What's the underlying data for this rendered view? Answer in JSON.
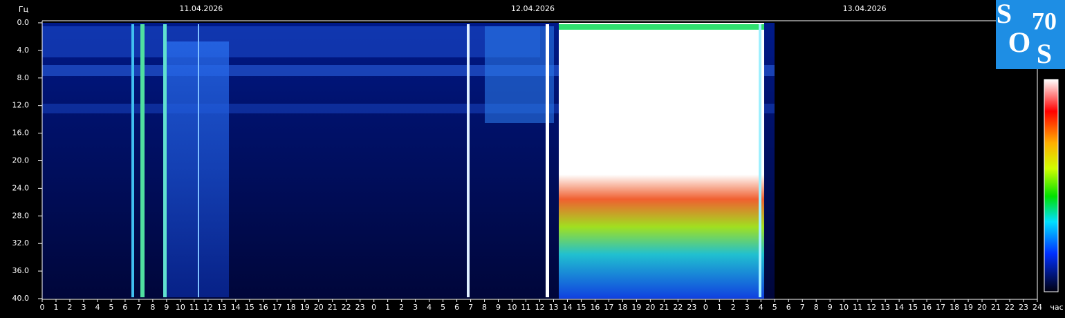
{
  "chart_data": {
    "type": "spectrogram",
    "y_label": "Гц",
    "x_label": "час",
    "dates": [
      "11.04.2026",
      "12.04.2026",
      "13.04.2026"
    ],
    "ylim": [
      0,
      40
    ],
    "yticks": [
      {
        "value": 0,
        "label": "0.0"
      },
      {
        "value": 4,
        "label": "4.0"
      },
      {
        "value": 8,
        "label": "8.0"
      },
      {
        "value": 12,
        "label": "12.0"
      },
      {
        "value": 16,
        "label": "16.0"
      },
      {
        "value": 20,
        "label": "20.0"
      },
      {
        "value": 24,
        "label": "24.0"
      },
      {
        "value": 28,
        "label": "28.0"
      },
      {
        "value": 32,
        "label": "32.0"
      },
      {
        "value": 36,
        "label": "36.0"
      },
      {
        "value": 40,
        "label": "40.0"
      }
    ],
    "xlim": [
      0,
      72
    ],
    "xticks": [
      0,
      1,
      2,
      3,
      4,
      5,
      6,
      7,
      8,
      9,
      10,
      11,
      12,
      13,
      14,
      15,
      16,
      17,
      18,
      19,
      20,
      21,
      22,
      23,
      {
        "value": 24,
        "label": "0"
      },
      {
        "value": 25,
        "label": "1"
      },
      {
        "value": 26,
        "label": "2"
      },
      {
        "value": 27,
        "label": "3"
      },
      {
        "value": 28,
        "label": "4"
      },
      {
        "value": 29,
        "label": "5"
      },
      {
        "value": 30,
        "label": "6"
      },
      {
        "value": 31,
        "label": "7"
      },
      {
        "value": 32,
        "label": "8"
      },
      {
        "value": 33,
        "label": "9"
      },
      {
        "value": 34,
        "label": "10"
      },
      {
        "value": 35,
        "label": "11"
      },
      {
        "value": 36,
        "label": "12"
      },
      {
        "value": 37,
        "label": "13"
      },
      {
        "value": 38,
        "label": "14"
      },
      {
        "value": 39,
        "label": "15"
      },
      {
        "value": 40,
        "label": "16"
      },
      {
        "value": 41,
        "label": "17"
      },
      {
        "value": 42,
        "label": "18"
      },
      {
        "value": 43,
        "label": "19"
      },
      {
        "value": 44,
        "label": "20"
      },
      {
        "value": 45,
        "label": "21"
      },
      {
        "value": 46,
        "label": "22"
      },
      {
        "value": 47,
        "label": "23"
      },
      {
        "value": 48,
        "label": "0"
      },
      {
        "value": 49,
        "label": "1"
      },
      {
        "value": 50,
        "label": "2"
      },
      {
        "value": 51,
        "label": "3"
      },
      {
        "value": 52,
        "label": "4"
      },
      {
        "value": 53,
        "label": "5"
      },
      {
        "value": 54,
        "label": "6"
      },
      {
        "value": 55,
        "label": "7"
      },
      {
        "value": 56,
        "label": "8"
      },
      {
        "value": 57,
        "label": "9"
      },
      {
        "value": 58,
        "label": "10"
      },
      {
        "value": 59,
        "label": "11"
      },
      {
        "value": 60,
        "label": "12"
      },
      {
        "value": 61,
        "label": "13"
      },
      {
        "value": 62,
        "label": "14"
      },
      {
        "value": 63,
        "label": "15"
      },
      {
        "value": 64,
        "label": "16"
      },
      {
        "value": 65,
        "label": "17"
      },
      {
        "value": 66,
        "label": "18"
      },
      {
        "value": 67,
        "label": "19"
      },
      {
        "value": 68,
        "label": "20"
      },
      {
        "value": 69,
        "label": "21"
      },
      {
        "value": 70,
        "label": "22"
      },
      {
        "value": 71,
        "label": "23"
      },
      {
        "value": 72,
        "label": "24"
      }
    ]
  },
  "logo": {
    "letters": [
      "S",
      "70",
      "O",
      "S"
    ]
  }
}
